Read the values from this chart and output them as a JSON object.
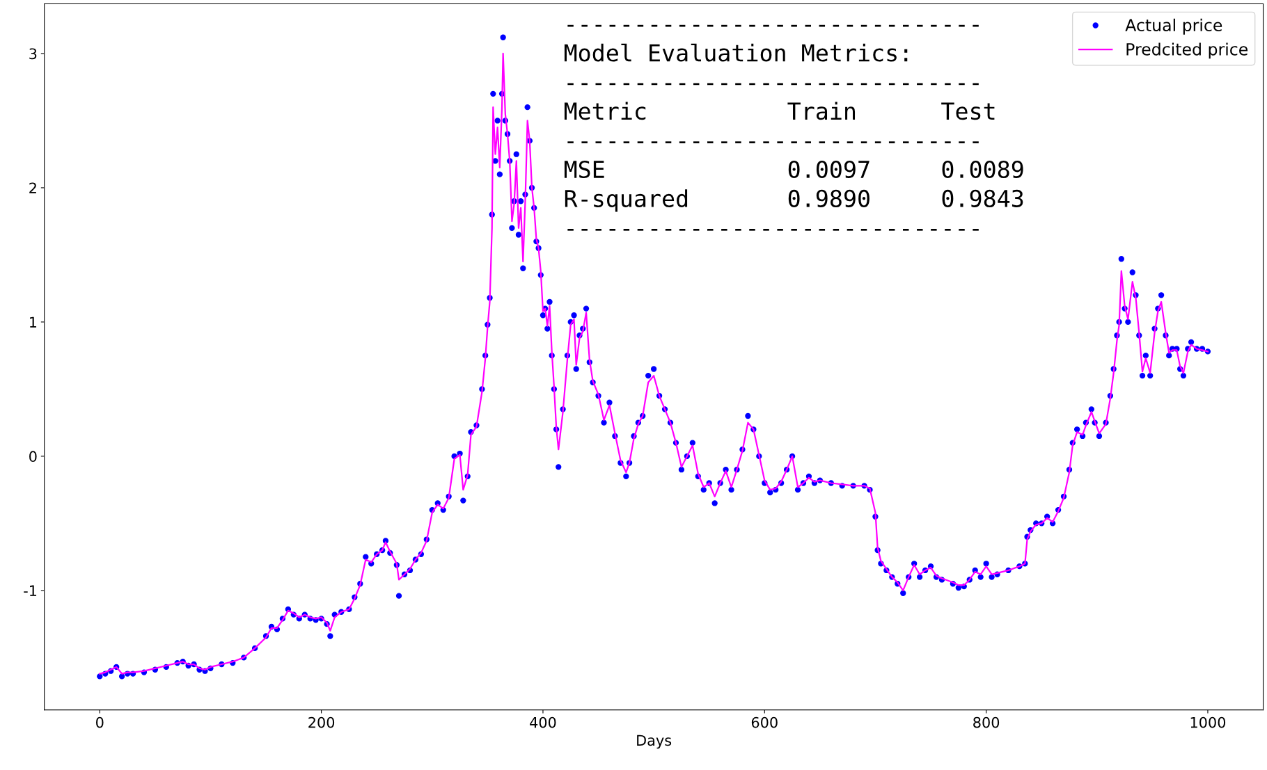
{
  "chart_data": {
    "type": "scatter",
    "xlabel": "Days",
    "xlim": [
      -50,
      1050
    ],
    "ylim": [
      -1.89,
      3.37
    ],
    "xticks": [
      0,
      200,
      400,
      600,
      800,
      1000
    ],
    "yticks": [
      -1,
      0,
      1,
      2,
      3
    ],
    "grid": false,
    "legend": "top right",
    "x": [
      0,
      5,
      10,
      15,
      20,
      25,
      30,
      40,
      50,
      60,
      70,
      75,
      80,
      85,
      90,
      95,
      100,
      110,
      120,
      130,
      140,
      150,
      155,
      160,
      165,
      170,
      175,
      180,
      185,
      190,
      195,
      200,
      205,
      208,
      212,
      218,
      225,
      230,
      235,
      240,
      245,
      250,
      255,
      258,
      262,
      268,
      270,
      275,
      280,
      285,
      290,
      295,
      300,
      305,
      310,
      315,
      320,
      325,
      328,
      332,
      335,
      340,
      345,
      348,
      350,
      352,
      354,
      355,
      357,
      359,
      361,
      363,
      364,
      366,
      368,
      370,
      372,
      374,
      376,
      378,
      380,
      382,
      384,
      386,
      388,
      390,
      392,
      394,
      396,
      398,
      400,
      402,
      404,
      406,
      408,
      410,
      412,
      414,
      418,
      422,
      425,
      428,
      430,
      433,
      436,
      439,
      442,
      445,
      450,
      455,
      460,
      465,
      470,
      475,
      478,
      482,
      486,
      490,
      495,
      500,
      505,
      510,
      515,
      520,
      525,
      530,
      535,
      540,
      545,
      550,
      555,
      560,
      565,
      570,
      575,
      580,
      585,
      590,
      595,
      600,
      605,
      610,
      615,
      620,
      625,
      630,
      635,
      640,
      645,
      650,
      660,
      670,
      680,
      690,
      695,
      700,
      702,
      705,
      710,
      715,
      720,
      725,
      730,
      735,
      740,
      745,
      750,
      755,
      760,
      770,
      775,
      780,
      785,
      790,
      795,
      800,
      805,
      810,
      820,
      830,
      835,
      837,
      840,
      845,
      850,
      855,
      860,
      865,
      870,
      875,
      878,
      882,
      887,
      890,
      895,
      898,
      902,
      908,
      912,
      915,
      918,
      920,
      922,
      925,
      928,
      932,
      935,
      938,
      941,
      944,
      948,
      952,
      955,
      958,
      962,
      965,
      968,
      972,
      975,
      978,
      982,
      985,
      990,
      995,
      1000
    ],
    "series": [
      {
        "name": "Actual price",
        "marker": "circle",
        "color": "#0000ff",
        "values": [
          -1.64,
          -1.62,
          -1.6,
          -1.57,
          -1.64,
          -1.62,
          -1.62,
          -1.61,
          -1.59,
          -1.57,
          -1.54,
          -1.53,
          -1.56,
          -1.55,
          -1.59,
          -1.6,
          -1.58,
          -1.55,
          -1.54,
          -1.5,
          -1.43,
          -1.34,
          -1.27,
          -1.29,
          -1.21,
          -1.14,
          -1.18,
          -1.21,
          -1.18,
          -1.21,
          -1.22,
          -1.21,
          -1.25,
          -1.34,
          -1.18,
          -1.16,
          -1.14,
          -1.05,
          -0.95,
          -0.75,
          -0.8,
          -0.73,
          -0.7,
          -0.63,
          -0.72,
          -0.81,
          -1.04,
          -0.88,
          -0.85,
          -0.77,
          -0.73,
          -0.62,
          -0.4,
          -0.35,
          -0.4,
          -0.3,
          0.0,
          0.02,
          -0.33,
          -0.15,
          0.18,
          0.23,
          0.5,
          0.75,
          0.98,
          1.18,
          1.8,
          2.7,
          2.2,
          2.5,
          2.1,
          2.7,
          3.12,
          2.5,
          2.4,
          2.2,
          1.7,
          1.9,
          2.25,
          1.65,
          1.9,
          1.4,
          1.95,
          2.6,
          2.35,
          2.0,
          1.85,
          1.6,
          1.55,
          1.35,
          1.05,
          1.1,
          0.95,
          1.15,
          0.75,
          0.5,
          0.2,
          -0.08,
          0.35,
          0.75,
          1.0,
          1.05,
          0.65,
          0.9,
          0.95,
          1.1,
          0.7,
          0.55,
          0.45,
          0.25,
          0.4,
          0.15,
          -0.05,
          -0.15,
          -0.05,
          0.15,
          0.25,
          0.3,
          0.6,
          0.65,
          0.45,
          0.35,
          0.25,
          0.1,
          -0.1,
          0.0,
          0.1,
          -0.15,
          -0.25,
          -0.2,
          -0.35,
          -0.2,
          -0.1,
          -0.25,
          -0.1,
          0.05,
          0.3,
          0.2,
          0.0,
          -0.2,
          -0.27,
          -0.25,
          -0.2,
          -0.1,
          0.0,
          -0.25,
          -0.2,
          -0.15,
          -0.2,
          -0.18,
          -0.2,
          -0.22,
          -0.22,
          -0.22,
          -0.25,
          -0.45,
          -0.7,
          -0.8,
          -0.85,
          -0.9,
          -0.95,
          -1.02,
          -0.9,
          -0.8,
          -0.9,
          -0.85,
          -0.82,
          -0.9,
          -0.92,
          -0.95,
          -0.98,
          -0.97,
          -0.92,
          -0.85,
          -0.9,
          -0.8,
          -0.9,
          -0.88,
          -0.85,
          -0.82,
          -0.8,
          -0.6,
          -0.55,
          -0.5,
          -0.5,
          -0.45,
          -0.5,
          -0.4,
          -0.3,
          -0.1,
          0.1,
          0.2,
          0.15,
          0.25,
          0.35,
          0.25,
          0.15,
          0.25,
          0.45,
          0.65,
          0.9,
          1.0,
          1.47,
          1.1,
          1.0,
          1.37,
          1.2,
          0.9,
          0.6,
          0.75,
          0.6,
          0.95,
          1.1,
          1.2,
          0.9,
          0.75,
          0.8,
          0.8,
          0.65,
          0.6,
          0.8,
          0.85,
          0.8,
          0.8,
          0.78
        ]
      },
      {
        "name": "Predcited price",
        "type": "line",
        "line_style": "solid",
        "color": "#ff00ff",
        "values": [
          -1.62,
          -1.61,
          -1.59,
          -1.57,
          -1.62,
          -1.61,
          -1.61,
          -1.6,
          -1.58,
          -1.56,
          -1.54,
          -1.53,
          -1.55,
          -1.55,
          -1.58,
          -1.59,
          -1.57,
          -1.55,
          -1.53,
          -1.5,
          -1.43,
          -1.35,
          -1.28,
          -1.28,
          -1.22,
          -1.15,
          -1.17,
          -1.2,
          -1.18,
          -1.2,
          -1.21,
          -1.2,
          -1.24,
          -1.3,
          -1.2,
          -1.16,
          -1.14,
          -1.06,
          -0.96,
          -0.77,
          -0.79,
          -0.73,
          -0.7,
          -0.64,
          -0.71,
          -0.8,
          -0.92,
          -0.88,
          -0.84,
          -0.77,
          -0.72,
          -0.63,
          -0.42,
          -0.36,
          -0.39,
          -0.31,
          -0.02,
          0.01,
          -0.25,
          -0.14,
          0.16,
          0.22,
          0.48,
          0.73,
          0.96,
          1.15,
          1.7,
          2.6,
          2.25,
          2.45,
          2.15,
          2.6,
          3.0,
          2.55,
          2.4,
          2.2,
          1.75,
          1.88,
          2.2,
          1.7,
          1.85,
          1.45,
          1.9,
          2.5,
          2.35,
          2.0,
          1.85,
          1.62,
          1.55,
          1.38,
          1.08,
          1.1,
          0.97,
          1.12,
          0.78,
          0.52,
          0.22,
          0.05,
          0.33,
          0.72,
          0.98,
          1.02,
          0.68,
          0.88,
          0.93,
          1.07,
          0.72,
          0.56,
          0.46,
          0.27,
          0.38,
          0.17,
          -0.03,
          -0.12,
          -0.05,
          0.13,
          0.24,
          0.3,
          0.55,
          0.6,
          0.45,
          0.35,
          0.25,
          0.1,
          -0.08,
          0.0,
          0.08,
          -0.13,
          -0.23,
          -0.2,
          -0.3,
          -0.2,
          -0.11,
          -0.23,
          -0.1,
          0.04,
          0.25,
          0.2,
          0.01,
          -0.18,
          -0.25,
          -0.24,
          -0.19,
          -0.1,
          0.0,
          -0.23,
          -0.2,
          -0.16,
          -0.19,
          -0.18,
          -0.2,
          -0.21,
          -0.22,
          -0.22,
          -0.24,
          -0.42,
          -0.68,
          -0.78,
          -0.84,
          -0.9,
          -0.94,
          -1.0,
          -0.9,
          -0.81,
          -0.88,
          -0.85,
          -0.83,
          -0.89,
          -0.91,
          -0.94,
          -0.96,
          -0.96,
          -0.92,
          -0.86,
          -0.88,
          -0.82,
          -0.88,
          -0.87,
          -0.85,
          -0.82,
          -0.8,
          -0.62,
          -0.56,
          -0.51,
          -0.5,
          -0.46,
          -0.49,
          -0.41,
          -0.31,
          -0.12,
          0.08,
          0.18,
          0.16,
          0.23,
          0.33,
          0.26,
          0.17,
          0.24,
          0.43,
          0.62,
          0.86,
          0.98,
          1.38,
          1.12,
          1.02,
          1.3,
          1.18,
          0.92,
          0.63,
          0.73,
          0.62,
          0.92,
          1.08,
          1.15,
          0.92,
          0.77,
          0.79,
          0.79,
          0.67,
          0.62,
          0.78,
          0.83,
          0.8,
          0.79,
          0.78
        ]
      }
    ],
    "annotations": [
      "------------------------------\nModel Evaluation Metrics:\n------------------------------\nMetric          Train      Test\n------------------------------\nMSE             0.0097     0.0089\nR-squared       0.9890     0.9843\n------------------------------"
    ]
  }
}
